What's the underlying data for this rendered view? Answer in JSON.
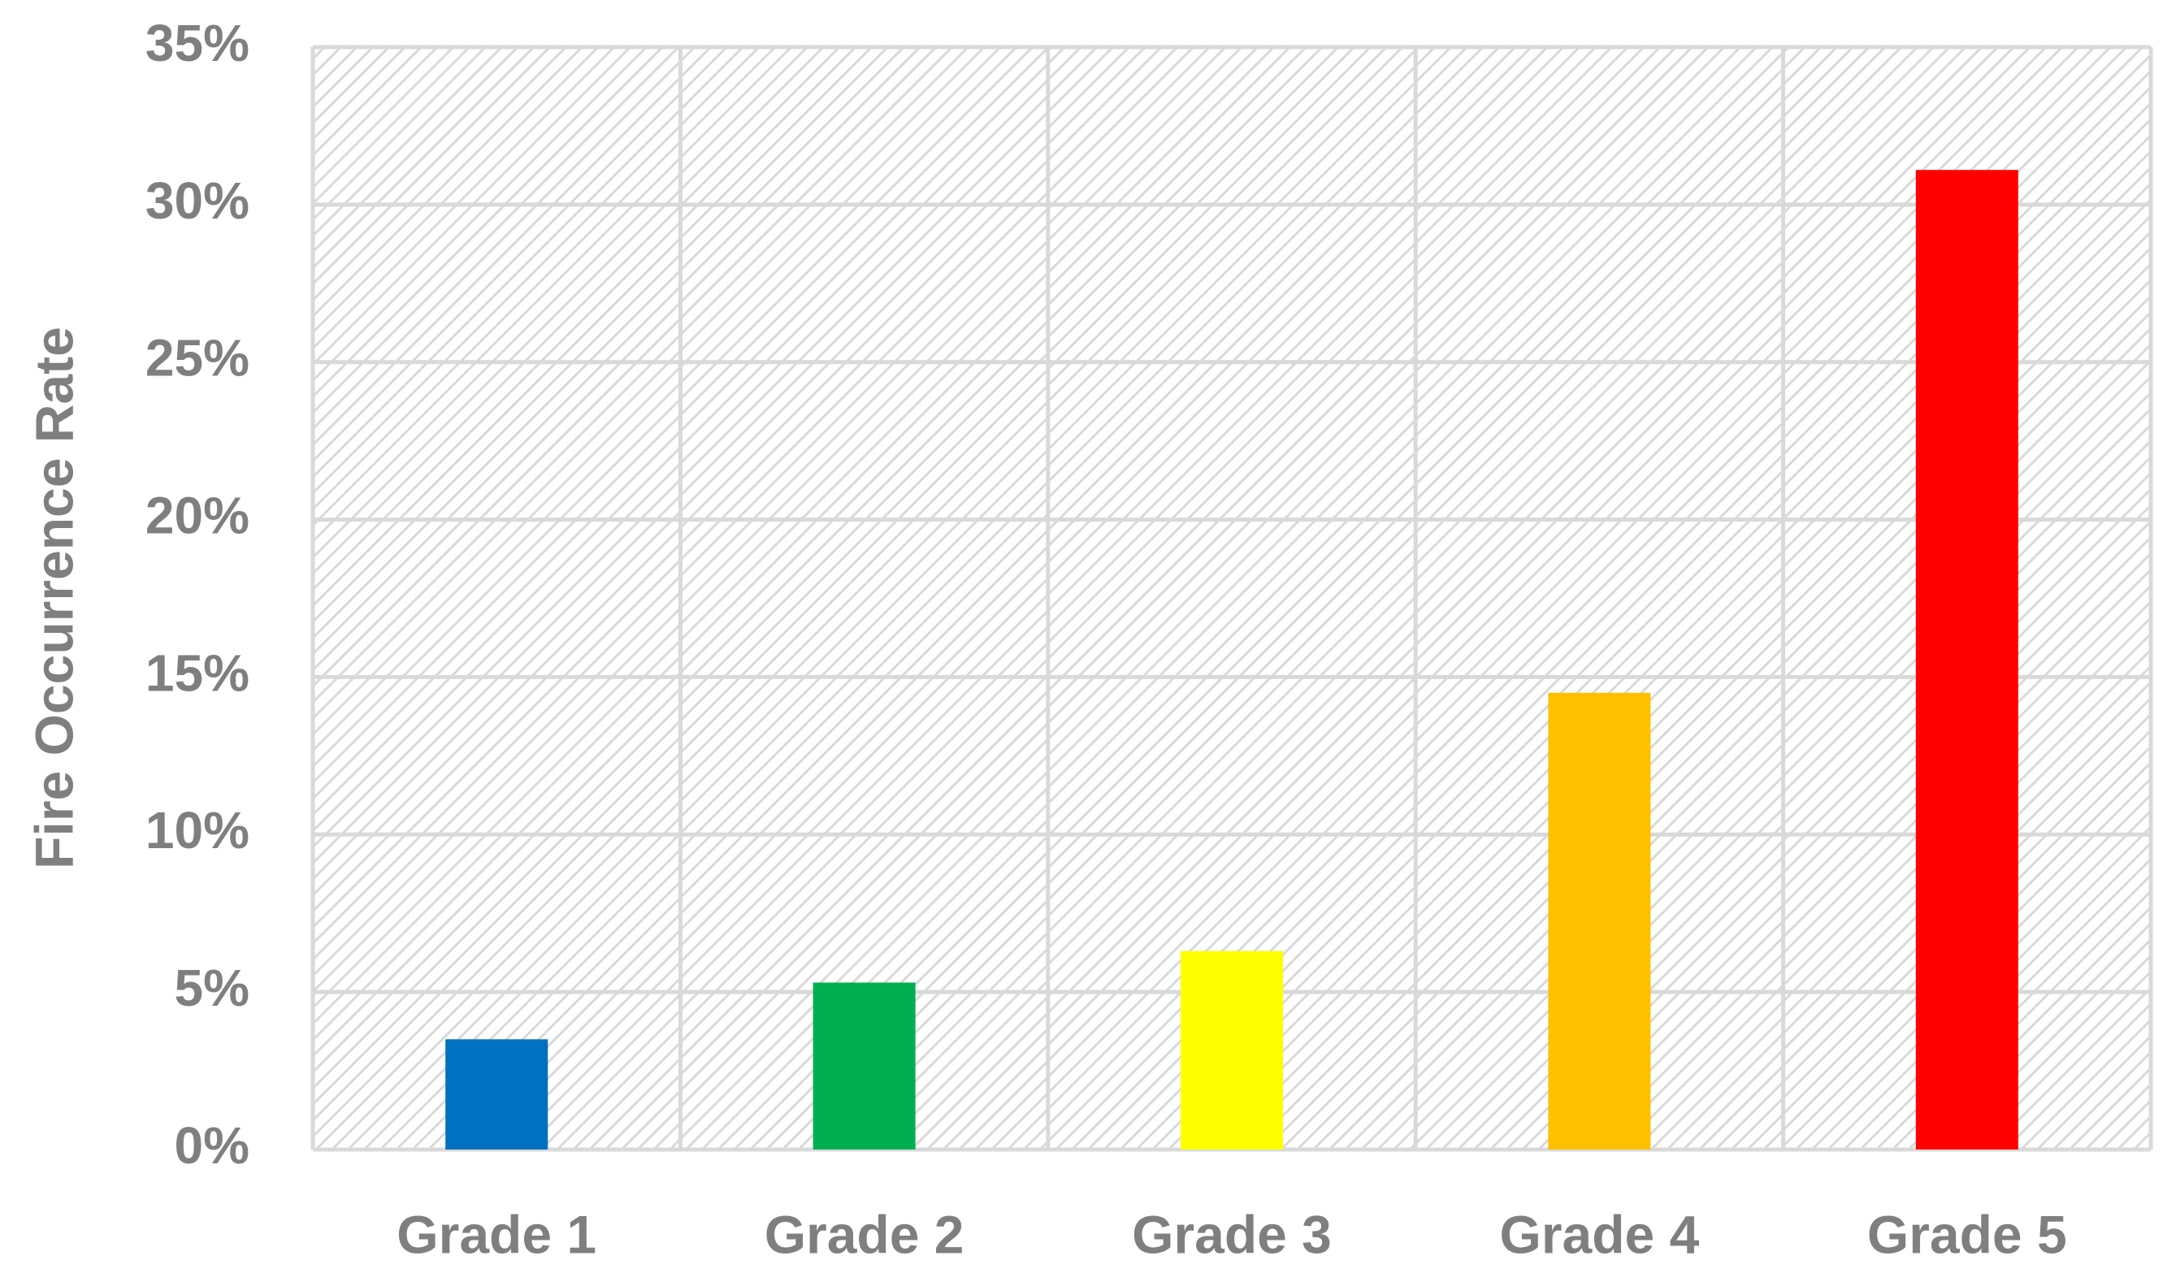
{
  "chart_data": {
    "type": "bar",
    "title": "",
    "xlabel": "",
    "ylabel": "Fire Occurrence Rate",
    "categories": [
      "Grade 1",
      "Grade 2",
      "Grade 3",
      "Grade 4",
      "Grade 5"
    ],
    "values": [
      3.5,
      5.3,
      6.3,
      14.5,
      31.1
    ],
    "value_unit": "%",
    "ylim": [
      0,
      35
    ],
    "yticks": [
      "0%",
      "5%",
      "10%",
      "15%",
      "20%",
      "25%",
      "30%",
      "35%"
    ],
    "grid": true,
    "legend": "none",
    "colors": [
      "#0070c0",
      "#00b050",
      "#ffff00",
      "#ffc000",
      "#ff0000"
    ],
    "plot_background": "#ffffff",
    "gridline_color": "#d9d9d9",
    "hatch_color": "#d9d9d9",
    "text_color": "#7f7f7f"
  }
}
